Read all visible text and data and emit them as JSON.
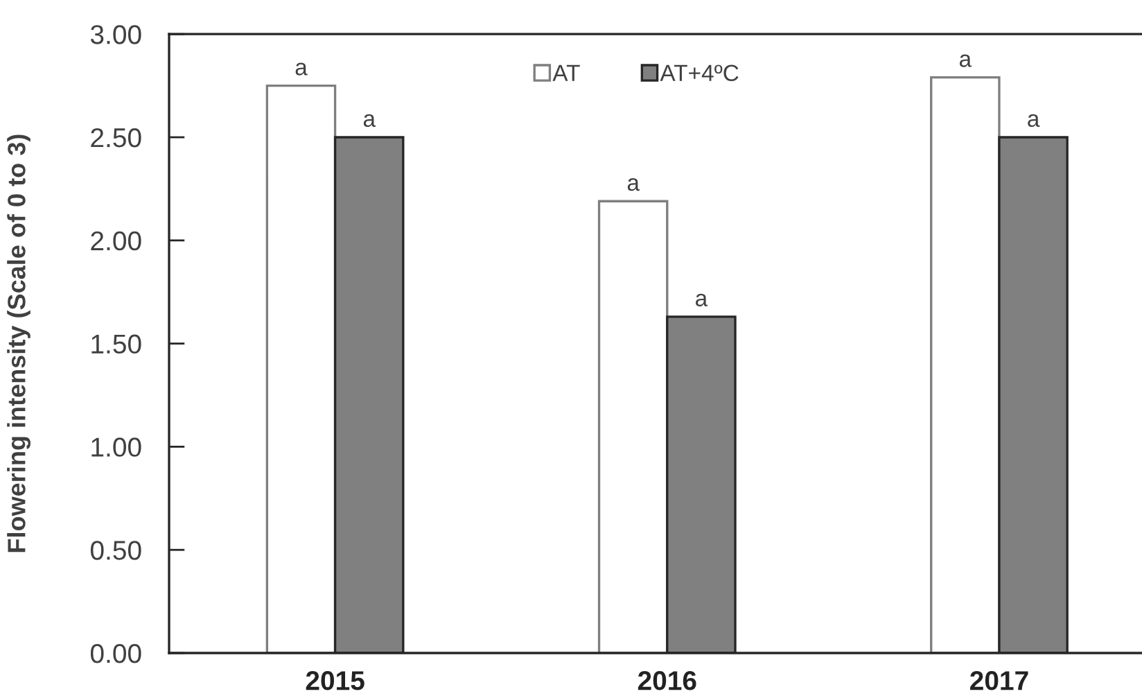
{
  "chart_data": {
    "type": "bar",
    "ylabel": "Flowering intensity (Scale of 0 to 3)",
    "categories": [
      "2015",
      "2016",
      "2017"
    ],
    "series": [
      {
        "name": "AT",
        "color": "#ffffff",
        "values": [
          2.75,
          2.19,
          2.79
        ],
        "value_labels": [
          "a",
          "a",
          "a"
        ]
      },
      {
        "name": "AT+4ºC",
        "color": "#808080",
        "values": [
          2.5,
          1.63,
          2.5
        ],
        "value_labels": [
          "a",
          "a",
          "a"
        ]
      }
    ],
    "ylim": [
      0,
      3
    ],
    "yticks": [
      {
        "value": 0,
        "label": "0.00"
      },
      {
        "value": 0.5,
        "label": "0.50"
      },
      {
        "value": 1,
        "label": "1.00"
      },
      {
        "value": 1.5,
        "label": "1.50"
      },
      {
        "value": 2,
        "label": "2.00"
      },
      {
        "value": 2.5,
        "label": "2.50"
      },
      {
        "value": 3,
        "label": "3.00"
      }
    ],
    "grid": false,
    "legend": "top"
  }
}
